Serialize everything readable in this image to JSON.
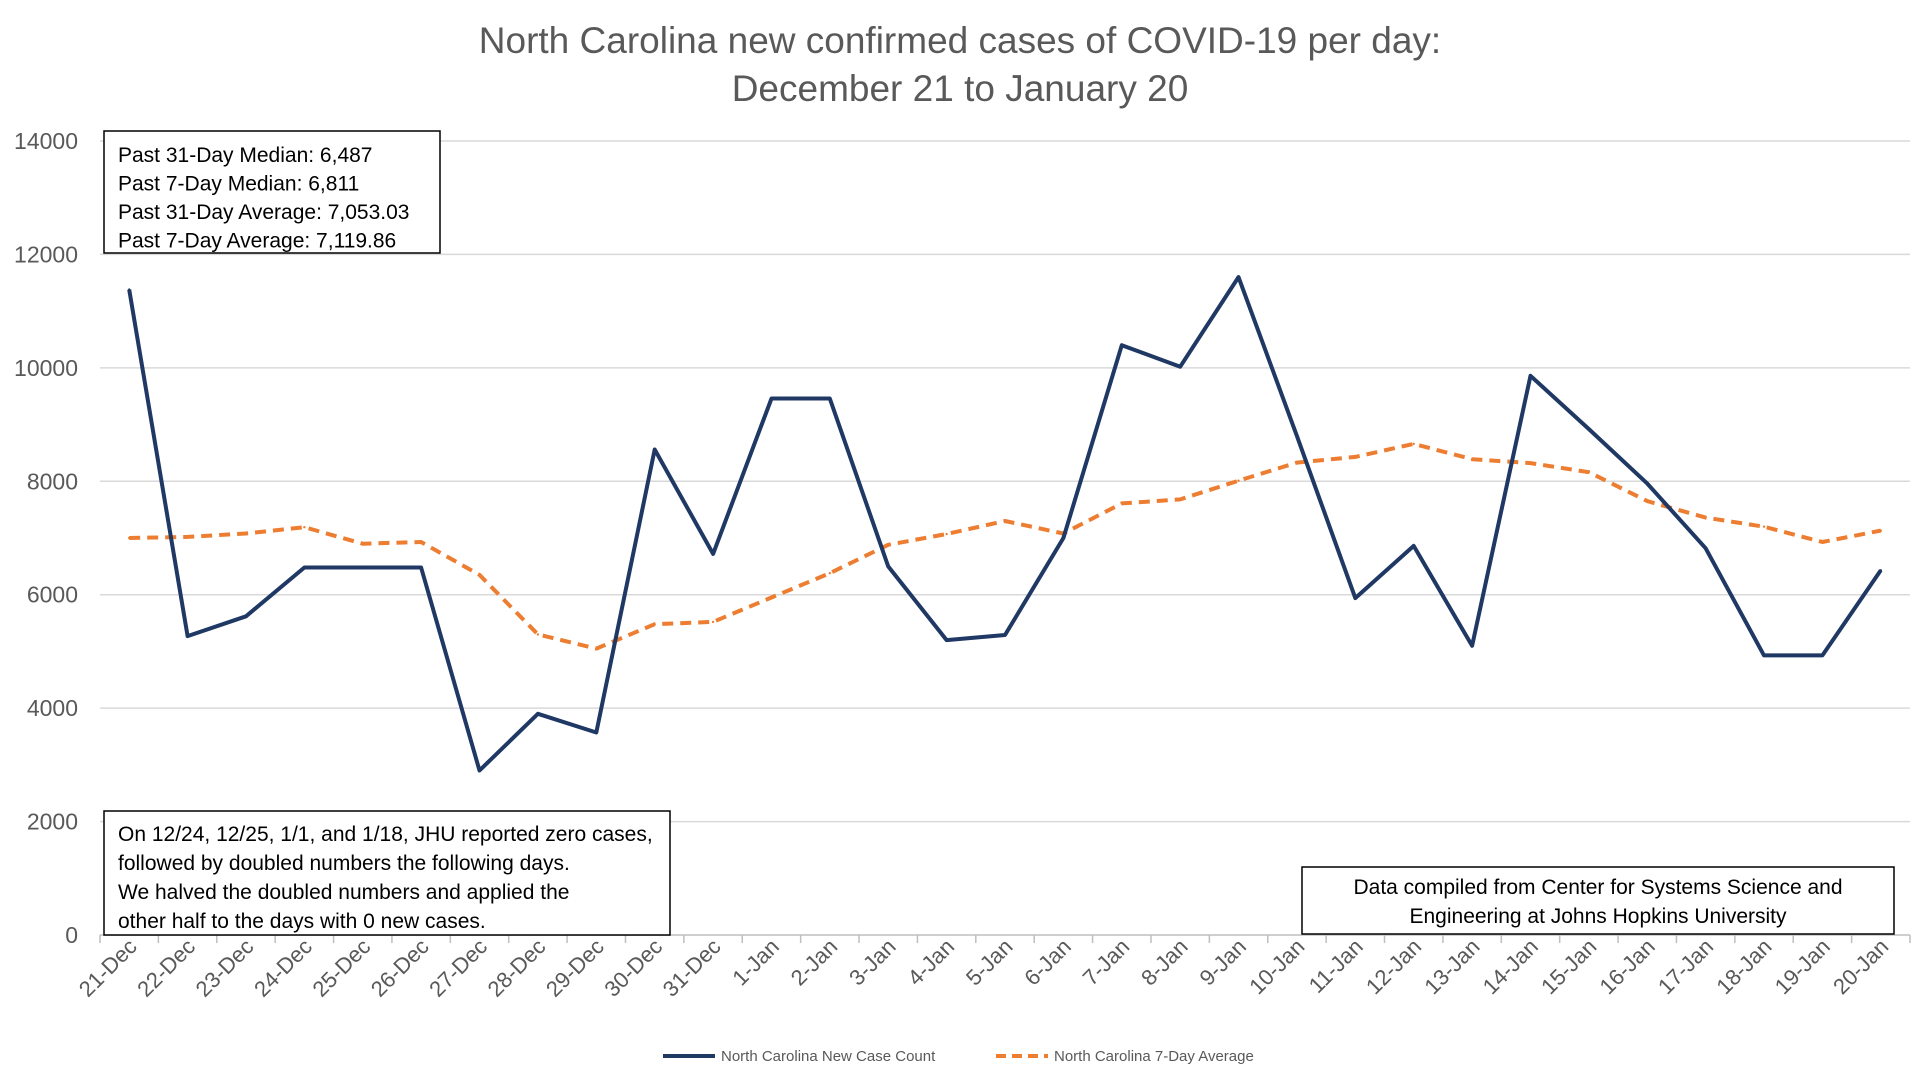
{
  "chart_data": {
    "type": "line",
    "title": "North Carolina new confirmed cases of COVID-19 per day:",
    "subtitle": "December 21 to January 20",
    "xlabel": "",
    "ylabel": "",
    "ylim": [
      0,
      14000
    ],
    "y_ticks": [
      0,
      2000,
      4000,
      6000,
      8000,
      10000,
      12000,
      14000
    ],
    "grid": true,
    "legend_position": "bottom",
    "categories": [
      "21-Dec",
      "22-Dec",
      "23-Dec",
      "24-Dec",
      "25-Dec",
      "26-Dec",
      "27-Dec",
      "28-Dec",
      "29-Dec",
      "30-Dec",
      "31-Dec",
      "1-Jan",
      "2-Jan",
      "3-Jan",
      "4-Jan",
      "5-Jan",
      "6-Jan",
      "7-Jan",
      "8-Jan",
      "9-Jan",
      "10-Jan",
      "11-Jan",
      "12-Jan",
      "13-Jan",
      "14-Jan",
      "15-Jan",
      "16-Jan",
      "17-Jan",
      "18-Jan",
      "19-Jan",
      "20-Jan"
    ],
    "series": [
      {
        "name": "North Carolina New Case Count",
        "color": "#1f3864",
        "style": "solid",
        "values": [
          11380,
          5270,
          5620,
          6480,
          6480,
          6480,
          2900,
          3900,
          3570,
          8560,
          6720,
          9460,
          9460,
          6500,
          5200,
          5290,
          7000,
          10400,
          10020,
          11600,
          8800,
          5940,
          6860,
          5100,
          9860,
          8920,
          7960,
          6820,
          4930,
          4930,
          6430
        ]
      },
      {
        "name": "North Carolina 7-Day Average",
        "color": "#ed7d31",
        "style": "dashed",
        "values": [
          7000,
          7020,
          7080,
          7190,
          6900,
          6930,
          6350,
          5300,
          5050,
          5480,
          5520,
          5950,
          6380,
          6880,
          7070,
          7300,
          7080,
          7610,
          7680,
          8010,
          8330,
          8430,
          8660,
          8390,
          8320,
          8160,
          7650,
          7360,
          7200,
          6930,
          7130
        ]
      }
    ],
    "annotations": [
      {
        "lines": [
          "Past 31-Day Median: 6,487",
          "Past 7-Day Median: 6,811",
          "Past 31-Day Average: 7,053.03",
          "Past 7-Day Average: 7,119.86"
        ]
      },
      {
        "lines": [
          "On 12/24, 12/25, 1/1, and 1/18, JHU reported zero cases,",
          "followed by doubled numbers the following days.",
          "We halved the doubled numbers and applied the",
          "other half to the days with 0 new cases."
        ]
      },
      {
        "lines": [
          "Data compiled from Center for Systems Science and",
          "Engineering at Johns Hopkins University"
        ]
      }
    ]
  }
}
